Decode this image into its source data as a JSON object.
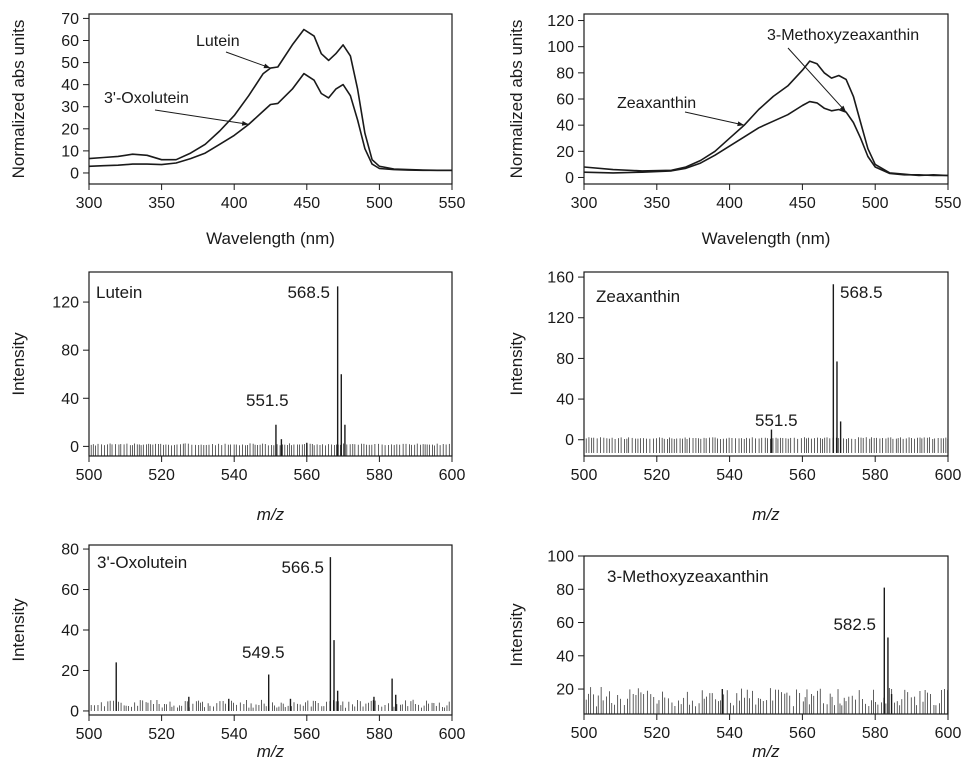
{
  "figure": {
    "background": "#ffffff",
    "ink_color": "#1a1a1a"
  },
  "chart_data": [
    {
      "id": "uv-lutein",
      "type": "line",
      "xlabel": "Wavelength (nm)",
      "ylabel": "Normalized abs units",
      "xlim": [
        300,
        550
      ],
      "ylim": [
        -5,
        72
      ],
      "xticks": [
        300,
        350,
        400,
        450,
        500,
        550
      ],
      "yticks": [
        0,
        10,
        20,
        30,
        40,
        50,
        60,
        70
      ],
      "grid": false,
      "series": [
        {
          "name": "Lutein",
          "x": [
            300,
            310,
            320,
            330,
            340,
            350,
            360,
            370,
            380,
            390,
            400,
            410,
            420,
            425,
            430,
            440,
            448,
            455,
            460,
            465,
            470,
            475,
            480,
            485,
            490,
            495,
            500,
            510,
            520,
            530,
            540,
            550
          ],
          "values": [
            6.5,
            7,
            7.5,
            8.5,
            8,
            6,
            6,
            9,
            13,
            19,
            26,
            35,
            45,
            47.5,
            48,
            58,
            65,
            62,
            54,
            51,
            54,
            58,
            53,
            38,
            18,
            6,
            3,
            1.8,
            1.5,
            1.3,
            1.2,
            1.2
          ]
        },
        {
          "name": "3'-Oxolutein",
          "x": [
            300,
            310,
            320,
            330,
            340,
            350,
            360,
            370,
            380,
            390,
            400,
            410,
            420,
            425,
            430,
            440,
            448,
            455,
            460,
            465,
            470,
            475,
            480,
            485,
            490,
            495,
            500,
            510,
            520,
            530,
            540,
            550
          ],
          "values": [
            3,
            3.3,
            3.5,
            4,
            4,
            3.8,
            4.5,
            6.5,
            9,
            13,
            17,
            22,
            28,
            31,
            31.5,
            38,
            45,
            42,
            36,
            34,
            38,
            40,
            35,
            24,
            11,
            4,
            2,
            1.5,
            1.3,
            1.2,
            1.2,
            1.2
          ]
        }
      ],
      "annotations": [
        {
          "text": "Lutein",
          "target_series": "Lutein",
          "target_x": 425
        },
        {
          "text": "3'-Oxolutein",
          "target_series": "3'-Oxolutein",
          "target_x": 410
        }
      ]
    },
    {
      "id": "uv-zeaxanthin",
      "type": "line",
      "xlabel": "Wavelength (nm)",
      "ylabel": "Normalized abs units",
      "xlim": [
        300,
        550
      ],
      "ylim": [
        -5,
        125
      ],
      "xticks": [
        300,
        350,
        400,
        450,
        500,
        550
      ],
      "yticks": [
        0,
        20,
        40,
        60,
        80,
        100,
        120
      ],
      "grid": false,
      "series": [
        {
          "name": "Zeaxanthin",
          "x": [
            300,
            320,
            340,
            360,
            370,
            380,
            390,
            400,
            410,
            420,
            430,
            440,
            450,
            455,
            460,
            465,
            470,
            475,
            480,
            485,
            490,
            495,
            500,
            510,
            520,
            530,
            540,
            550
          ],
          "values": [
            8,
            6,
            5,
            5.5,
            8,
            13,
            20,
            30,
            40,
            52,
            62,
            70,
            82,
            89,
            87,
            80,
            76,
            78,
            75,
            62,
            42,
            22,
            10,
            3.5,
            2.5,
            1.5,
            2,
            1.5
          ],
          "label_anchor_x": 410
        },
        {
          "name": "3-Methoxyzeaxanthin",
          "x": [
            300,
            320,
            340,
            360,
            370,
            380,
            390,
            400,
            410,
            420,
            430,
            440,
            450,
            455,
            460,
            465,
            470,
            475,
            480,
            485,
            490,
            495,
            500,
            510,
            520,
            530,
            540,
            550
          ],
          "values": [
            4,
            3.5,
            4,
            5,
            7,
            11,
            17,
            24,
            31,
            38,
            43,
            48,
            55,
            58,
            57,
            53,
            51,
            52,
            50,
            42,
            30,
            16,
            8,
            3,
            2,
            2,
            1.5,
            1.5
          ],
          "label_anchor_x": 480
        }
      ],
      "annotations": [
        {
          "text": "3-Methoxyzeaxanthin",
          "target_series": "3-Methoxyzeaxanthin",
          "target_x": 480
        },
        {
          "text": "Zeaxanthin",
          "target_series": "Zeaxanthin",
          "target_x": 410
        }
      ]
    },
    {
      "id": "ms-lutein",
      "type": "bar",
      "panel_label": "Lutein",
      "xlabel": "m/z",
      "ylabel": "Intensity",
      "xlim": [
        500,
        600
      ],
      "ylim": [
        -8,
        145
      ],
      "xticks": [
        500,
        520,
        540,
        560,
        580,
        600
      ],
      "yticks": [
        0,
        40,
        80,
        120
      ],
      "grid": false,
      "baseline": 0,
      "noise_level": 2,
      "noise_floor": -8,
      "peaks": [
        {
          "mz": 551.5,
          "intensity": 18
        },
        {
          "mz": 553.0,
          "intensity": 6
        },
        {
          "mz": 560.0,
          "intensity": 3
        },
        {
          "mz": 568.5,
          "intensity": 133
        },
        {
          "mz": 569.5,
          "intensity": 60
        },
        {
          "mz": 570.5,
          "intensity": 18
        }
      ],
      "peak_labels": [
        {
          "text": "568.5",
          "mz": 568.5
        },
        {
          "text": "551.5",
          "mz": 551.5
        }
      ]
    },
    {
      "id": "ms-zeaxanthin",
      "type": "bar",
      "panel_label": "Zeaxanthin",
      "xlabel": "m/z",
      "ylabel": "Intensity",
      "xlim": [
        500,
        600
      ],
      "ylim": [
        -16,
        165
      ],
      "xticks": [
        500,
        520,
        540,
        560,
        580,
        600
      ],
      "yticks": [
        0,
        40,
        80,
        120,
        160
      ],
      "grid": false,
      "baseline": 0,
      "noise_level": 2,
      "noise_floor": -13,
      "peaks": [
        {
          "mz": 551.5,
          "intensity": 10
        },
        {
          "mz": 568.5,
          "intensity": 153
        },
        {
          "mz": 569.5,
          "intensity": 77
        },
        {
          "mz": 570.5,
          "intensity": 18
        }
      ],
      "peak_labels": [
        {
          "text": "568.5",
          "mz": 568.5
        },
        {
          "text": "551.5",
          "mz": 551.5
        }
      ]
    },
    {
      "id": "ms-oxolutein",
      "type": "bar",
      "panel_label": "3'-Oxolutein",
      "xlabel": "m/z",
      "ylabel": "Intensity",
      "xlim": [
        500,
        600
      ],
      "ylim": [
        -2,
        82
      ],
      "xticks": [
        500,
        520,
        540,
        560,
        580,
        600
      ],
      "yticks": [
        0,
        20,
        40,
        60,
        80
      ],
      "grid": false,
      "baseline": 0,
      "noise_level": 4.5,
      "noise_floor": 0,
      "peaks": [
        {
          "mz": 507.5,
          "intensity": 24
        },
        {
          "mz": 527.5,
          "intensity": 7
        },
        {
          "mz": 538.5,
          "intensity": 6
        },
        {
          "mz": 549.5,
          "intensity": 18
        },
        {
          "mz": 555.5,
          "intensity": 6
        },
        {
          "mz": 566.5,
          "intensity": 76
        },
        {
          "mz": 567.5,
          "intensity": 35
        },
        {
          "mz": 568.5,
          "intensity": 10
        },
        {
          "mz": 578.5,
          "intensity": 7
        },
        {
          "mz": 583.5,
          "intensity": 16
        },
        {
          "mz": 584.5,
          "intensity": 8
        }
      ],
      "peak_labels": [
        {
          "text": "566.5",
          "mz": 566.5
        },
        {
          "text": "549.5",
          "mz": 549.5
        }
      ]
    },
    {
      "id": "ms-methoxyzeaxanthin",
      "type": "bar",
      "panel_label": "3-Methoxyzeaxanthin",
      "xlabel": "m/z",
      "ylabel": "Intensity",
      "xlim": [
        500,
        600
      ],
      "ylim": [
        5,
        100
      ],
      "xticks": [
        500,
        520,
        540,
        560,
        580,
        600
      ],
      "yticks": [
        20,
        40,
        60,
        80,
        100
      ],
      "grid": false,
      "baseline": 5,
      "noise_level": 13,
      "noise_floor": 5,
      "peaks": [
        {
          "mz": 538.0,
          "intensity": 20
        },
        {
          "mz": 582.5,
          "intensity": 81
        },
        {
          "mz": 583.5,
          "intensity": 51
        },
        {
          "mz": 584.5,
          "intensity": 17
        }
      ],
      "peak_labels": [
        {
          "text": "582.5",
          "mz": 582.5
        }
      ]
    }
  ]
}
